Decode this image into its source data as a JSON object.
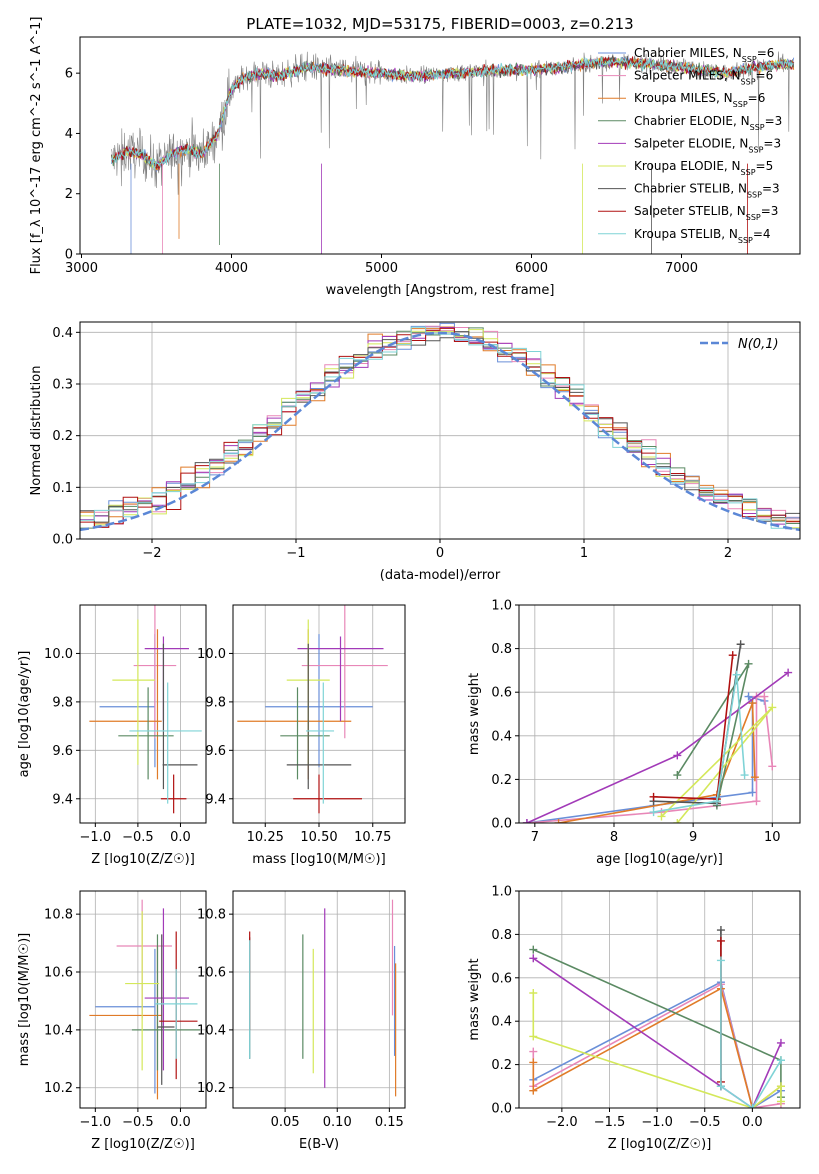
{
  "figure_title": "PLATE=1032, MJD=53175, FIBERID=0003, z=0.213",
  "models": [
    {
      "name": "Chabrier MILES",
      "nssp": 6,
      "color": "#6a8fd8"
    },
    {
      "name": "Salpeter MILES",
      "nssp": 6,
      "color": "#e887b8"
    },
    {
      "name": "Kroupa MILES",
      "nssp": 6,
      "color": "#e07b28"
    },
    {
      "name": "Chabrier ELODIE",
      "nssp": 3,
      "color": "#5b8a63"
    },
    {
      "name": "Salpeter ELODIE",
      "nssp": 3,
      "color": "#a23ab8"
    },
    {
      "name": "Kroupa ELODIE",
      "nssp": 5,
      "color": "#d4e85a"
    },
    {
      "name": "Chabrier STELIB",
      "nssp": 3,
      "color": "#555555"
    },
    {
      "name": "Salpeter STELIB",
      "nssp": 3,
      "color": "#b01010"
    },
    {
      "name": "Kroupa STELIB",
      "nssp": 4,
      "color": "#7fd3d6"
    }
  ],
  "legend_prefix_nssp": "N",
  "legend_sub_nssp": "SSP",
  "chart_data": [
    {
      "id": "spectrum",
      "type": "line",
      "xlabel": "wavelength [Angstrom, rest frame]",
      "ylabel": "Flux [f_λ 10^-17 erg cm^-2 s^-1 A^-1]",
      "xlim": [
        2990,
        7790
      ],
      "ylim": [
        0,
        7.2
      ],
      "xticks": [
        3000,
        4000,
        5000,
        6000,
        7000
      ],
      "yticks": [
        0,
        2,
        4,
        6
      ],
      "grid": false,
      "legend": "right",
      "data_color": "#808080",
      "data_range": [
        3200,
        7750
      ],
      "continuum": [
        [
          3200,
          3.1
        ],
        [
          3300,
          3.4
        ],
        [
          3400,
          3.3
        ],
        [
          3500,
          2.9
        ],
        [
          3600,
          3.3
        ],
        [
          3700,
          3.5
        ],
        [
          3800,
          3.3
        ],
        [
          3900,
          3.9
        ],
        [
          4000,
          5.5
        ],
        [
          4100,
          5.9
        ],
        [
          4200,
          6.0
        ],
        [
          4300,
          5.9
        ],
        [
          4500,
          6.2
        ],
        [
          4700,
          6.1
        ],
        [
          5000,
          6.0
        ],
        [
          5200,
          5.9
        ],
        [
          5500,
          6.0
        ],
        [
          5800,
          6.1
        ],
        [
          6000,
          6.1
        ],
        [
          6200,
          6.2
        ],
        [
          6500,
          6.4
        ],
        [
          6800,
          6.3
        ],
        [
          7000,
          6.2
        ],
        [
          7300,
          6.0
        ],
        [
          7500,
          6.2
        ],
        [
          7700,
          6.3
        ]
      ]
    },
    {
      "id": "residuals",
      "type": "histogram",
      "xlabel": "(data-model)/error",
      "ylabel": "Normed distribution",
      "xlim": [
        -2.5,
        2.5
      ],
      "ylim": [
        0,
        0.42
      ],
      "xticks": [
        -2,
        -1,
        0,
        1,
        2
      ],
      "yticks": [
        0.0,
        0.1,
        0.2,
        0.3,
        0.4
      ],
      "grid": true,
      "legend": "top-right",
      "reference_label": "N(0,1)",
      "reference_color": "#5b87d6",
      "bin_width": 0.1
    },
    {
      "id": "age-vs-Z",
      "type": "scatter",
      "xlabel": "Z [log10(Z/Z☉)]",
      "ylabel": "age [log10(age/yr)]",
      "xlim": [
        -1.18,
        0.3
      ],
      "ylim": [
        9.3,
        10.2
      ],
      "xticks": [
        -1.0,
        -0.5,
        0.0
      ],
      "yticks": [
        9.4,
        9.6,
        9.8,
        10.0
      ],
      "grid": true,
      "points": [
        {
          "m": 0,
          "x": -0.3,
          "xerr": [
            0.65,
            0.0
          ],
          "y": 9.78,
          "yerr": [
            0.25,
            0.3
          ]
        },
        {
          "m": 1,
          "x": -0.3,
          "xerr": [
            0.25,
            0.25
          ],
          "y": 9.95,
          "yerr": [
            0.3,
            0.25
          ]
        },
        {
          "m": 2,
          "x": -0.27,
          "xerr": [
            0.8,
            0.05
          ],
          "y": 9.72,
          "yerr": [
            0.24,
            0.38
          ]
        },
        {
          "m": 3,
          "x": -0.38,
          "xerr": [
            0.35,
            0.3
          ],
          "y": 9.66,
          "yerr": [
            0.18,
            0.2
          ]
        },
        {
          "m": 4,
          "x": -0.2,
          "xerr": [
            0.22,
            0.3
          ],
          "y": 10.02,
          "yerr": [
            0.3,
            0.05
          ]
        },
        {
          "m": 5,
          "x": -0.5,
          "xerr": [
            0.3,
            0.2
          ],
          "y": 9.89,
          "yerr": [
            0.35,
            0.25
          ]
        },
        {
          "m": 6,
          "x": -0.2,
          "xerr": [
            0.01,
            0.4
          ],
          "y": 9.54,
          "yerr": [
            0.1,
            0.5
          ]
        },
        {
          "m": 7,
          "x": -0.08,
          "xerr": [
            0.15,
            0.15
          ],
          "y": 9.4,
          "yerr": [
            0.06,
            0.1
          ]
        },
        {
          "m": 8,
          "x": -0.15,
          "xerr": [
            0.45,
            0.4
          ],
          "y": 9.68,
          "yerr": [
            0.3,
            0.2
          ]
        }
      ]
    },
    {
      "id": "age-vs-mass",
      "type": "scatter",
      "xlabel": "mass [log10(M/M☉)]",
      "ylabel": "",
      "xlim": [
        10.1,
        10.9
      ],
      "ylim": [
        9.3,
        10.2
      ],
      "xticks": [
        10.25,
        10.5,
        10.75
      ],
      "yticks": [
        9.4,
        9.6,
        9.8,
        10.0
      ],
      "grid": true,
      "points": [
        {
          "m": 0,
          "x": 10.5,
          "xerr": [
            0.25,
            0.25
          ],
          "y": 9.78,
          "yerr": [
            0.25,
            0.3
          ]
        },
        {
          "m": 1,
          "x": 10.62,
          "xerr": [
            0.2,
            0.2
          ],
          "y": 9.95,
          "yerr": [
            0.3,
            0.25
          ]
        },
        {
          "m": 2,
          "x": 10.45,
          "xerr": [
            0.33,
            0.2
          ],
          "y": 9.72,
          "yerr": [
            0.24,
            0.38
          ]
        },
        {
          "m": 3,
          "x": 10.4,
          "xerr": [
            0.08,
            0.15
          ],
          "y": 9.66,
          "yerr": [
            0.18,
            0.2
          ]
        },
        {
          "m": 4,
          "x": 10.6,
          "xerr": [
            0.2,
            0.2
          ],
          "y": 10.02,
          "yerr": [
            0.3,
            0.05
          ]
        },
        {
          "m": 5,
          "x": 10.45,
          "xerr": [
            0.1,
            0.1
          ],
          "y": 9.89,
          "yerr": [
            0.35,
            0.25
          ]
        },
        {
          "m": 6,
          "x": 10.45,
          "xerr": [
            0.1,
            0.2
          ],
          "y": 9.54,
          "yerr": [
            0.1,
            0.5
          ]
        },
        {
          "m": 7,
          "x": 10.5,
          "xerr": [
            0.12,
            0.2
          ],
          "y": 9.4,
          "yerr": [
            0.06,
            0.1
          ]
        },
        {
          "m": 8,
          "x": 10.52,
          "xerr": [
            0.08,
            0.05
          ],
          "y": 9.68,
          "yerr": [
            0.3,
            0.2
          ]
        }
      ]
    },
    {
      "id": "weight-vs-age",
      "type": "line",
      "xlabel": "age [log10(age/yr)]",
      "ylabel": "mass weight",
      "xlim": [
        6.8,
        10.35
      ],
      "ylim": [
        0,
        1.0
      ],
      "xticks": [
        7,
        8,
        9,
        10
      ],
      "yticks": [
        0.0,
        0.2,
        0.4,
        0.6,
        0.8,
        1.0
      ],
      "grid": true,
      "series": [
        {
          "m": 0,
          "points": [
            [
              6.9,
              0.0
            ],
            [
              8.5,
              0.08
            ],
            [
              9.75,
              0.14
            ],
            [
              9.75,
              0.55
            ],
            [
              9.7,
              0.58
            ],
            [
              9.9,
              0.56
            ]
          ]
        },
        {
          "m": 1,
          "points": [
            [
              6.9,
              0.0
            ],
            [
              8.6,
              0.05
            ],
            [
              9.8,
              0.1
            ],
            [
              9.8,
              0.58
            ],
            [
              9.9,
              0.58
            ],
            [
              10.0,
              0.26
            ]
          ]
        },
        {
          "m": 2,
          "points": [
            [
              7.3,
              0.0
            ],
            [
              9.3,
              0.13
            ],
            [
              9.75,
              0.55
            ],
            [
              9.78,
              0.21
            ]
          ]
        },
        {
          "m": 3,
          "points": [
            [
              8.8,
              0.22
            ],
            [
              9.7,
              0.73
            ],
            [
              9.3,
              0.08
            ]
          ]
        },
        {
          "m": 4,
          "points": [
            [
              6.9,
              0.0
            ],
            [
              8.8,
              0.31
            ],
            [
              10.2,
              0.69
            ]
          ]
        },
        {
          "m": 5,
          "points": [
            [
              8.8,
              0.0
            ],
            [
              10.0,
              0.53
            ],
            [
              8.6,
              0.03
            ]
          ]
        },
        {
          "m": 6,
          "points": [
            [
              8.5,
              0.1
            ],
            [
              9.3,
              0.09
            ],
            [
              9.6,
              0.82
            ]
          ]
        },
        {
          "m": 7,
          "points": [
            [
              8.5,
              0.12
            ],
            [
              9.3,
              0.11
            ],
            [
              9.5,
              0.77
            ]
          ]
        },
        {
          "m": 8,
          "points": [
            [
              8.5,
              0.05
            ],
            [
              9.3,
              0.1
            ],
            [
              9.55,
              0.68
            ],
            [
              9.65,
              0.22
            ]
          ]
        }
      ]
    },
    {
      "id": "mass-vs-Z",
      "type": "scatter",
      "xlabel": "Z [log10(Z/Z☉)]",
      "ylabel": "mass [log10(M/M☉)]",
      "xlim": [
        -1.18,
        0.3
      ],
      "ylim": [
        10.13,
        10.88
      ],
      "xticks": [
        -1.0,
        -0.5,
        0.0
      ],
      "yticks": [
        10.2,
        10.4,
        10.6,
        10.8
      ],
      "grid": true,
      "points": [
        {
          "m": 0,
          "x": -0.3,
          "xerr": [
            0.7,
            0.0
          ],
          "y": 10.48,
          "yerr": [
            0.3,
            0.2
          ]
        },
        {
          "m": 1,
          "x": -0.45,
          "xerr": [
            0.3,
            0.35
          ],
          "y": 10.69,
          "yerr": [
            0.25,
            0.16
          ]
        },
        {
          "m": 2,
          "x": -0.27,
          "xerr": [
            0.8,
            0.05
          ],
          "y": 10.45,
          "yerr": [
            0.29,
            0.24
          ]
        },
        {
          "m": 3,
          "x": -0.27,
          "xerr": [
            0.3,
            0.5
          ],
          "y": 10.4,
          "yerr": [
            0.14,
            0.33
          ]
        },
        {
          "m": 4,
          "x": -0.2,
          "xerr": [
            0.22,
            0.3
          ],
          "y": 10.51,
          "yerr": [
            0.25,
            0.31
          ]
        },
        {
          "m": 5,
          "x": -0.45,
          "xerr": [
            0.2,
            0.2
          ],
          "y": 10.56,
          "yerr": [
            0.3,
            0.25
          ]
        },
        {
          "m": 6,
          "x": -0.22,
          "xerr": [
            0.05,
            0.15
          ],
          "y": 10.41,
          "yerr": [
            0.2,
            0.32
          ]
        },
        {
          "m": 7,
          "x": -0.05,
          "xerr": [
            0.2,
            0.25
          ],
          "y": 10.43,
          "yerr": [
            0.2,
            0.31
          ]
        },
        {
          "m": 8,
          "x": -0.05,
          "xerr": [
            0.25,
            0.25
          ],
          "y": 10.49,
          "yerr": [
            0.19,
            0.12
          ]
        }
      ]
    },
    {
      "id": "mass-vs-ebv",
      "type": "scatter",
      "xlabel": "E(B-V)",
      "ylabel": "",
      "xlim": [
        0.0,
        0.165
      ],
      "ylim": [
        10.13,
        10.88
      ],
      "xticks": [
        0.05,
        0.1,
        0.15
      ],
      "yticks": [
        10.2,
        10.4,
        10.6,
        10.8
      ],
      "grid": true,
      "points": [
        {
          "m": 0,
          "x": 0.155,
          "xerr": [
            0,
            0
          ],
          "y": 10.48,
          "yerr": [
            0.17,
            0.21
          ]
        },
        {
          "m": 1,
          "x": 0.153,
          "xerr": [
            0,
            0
          ],
          "y": 10.55,
          "yerr": [
            0.1,
            0.3
          ]
        },
        {
          "m": 2,
          "x": 0.156,
          "xerr": [
            0,
            0
          ],
          "y": 10.4,
          "yerr": [
            0.23,
            0.23
          ]
        },
        {
          "m": 3,
          "x": 0.067,
          "xerr": [
            0,
            0
          ],
          "y": 10.5,
          "yerr": [
            0.2,
            0.23
          ]
        },
        {
          "m": 4,
          "x": 0.088,
          "xerr": [
            0,
            0
          ],
          "y": 10.5,
          "yerr": [
            0.3,
            0.32
          ]
        },
        {
          "m": 5,
          "x": 0.077,
          "xerr": [
            0,
            0
          ],
          "y": 10.45,
          "yerr": [
            0.2,
            0.23
          ]
        },
        {
          "m": 6,
          "x": 0.016,
          "xerr": [
            0,
            0
          ],
          "y": 10.5,
          "yerr": [
            0.2,
            0.22
          ]
        },
        {
          "m": 7,
          "x": 0.016,
          "xerr": [
            0,
            0
          ],
          "y": 10.6,
          "yerr": [
            0.2,
            0.14
          ]
        },
        {
          "m": 8,
          "x": 0.016,
          "xerr": [
            0,
            0
          ],
          "y": 10.5,
          "yerr": [
            0.2,
            0.21
          ]
        }
      ]
    },
    {
      "id": "weight-vs-Z",
      "type": "line",
      "xlabel": "Z [log10(Z/Z☉)]",
      "ylabel": "mass weight",
      "xlim": [
        -2.45,
        0.5
      ],
      "ylim": [
        0,
        1.0
      ],
      "xticks": [
        -2.0,
        -1.5,
        -1.0,
        -0.5,
        0.0
      ],
      "yticks": [
        0.0,
        0.2,
        0.4,
        0.6,
        0.8,
        1.0
      ],
      "grid": true,
      "series": [
        {
          "m": 0,
          "points": [
            [
              -2.3,
              0.13
            ],
            [
              -0.33,
              0.58
            ],
            [
              0.0,
              0.0
            ],
            [
              0.3,
              0.08
            ]
          ]
        },
        {
          "m": 1,
          "points": [
            [
              -2.3,
              0.26
            ],
            [
              -2.3,
              0.1
            ],
            [
              -0.33,
              0.57
            ],
            [
              0.0,
              0.0
            ],
            [
              0.3,
              0.02
            ]
          ]
        },
        {
          "m": 2,
          "points": [
            [
              -2.3,
              0.21
            ],
            [
              -2.3,
              0.08
            ],
            [
              -0.33,
              0.55
            ],
            [
              0.0,
              0.0
            ],
            [
              0.3,
              0.1
            ]
          ]
        },
        {
          "m": 3,
          "points": [
            [
              -2.3,
              0.73
            ],
            [
              0.3,
              0.22
            ],
            [
              0.3,
              0.05
            ]
          ]
        },
        {
          "m": 4,
          "points": [
            [
              -2.3,
              0.69
            ],
            [
              -0.33,
              0.1
            ],
            [
              0.0,
              0.0
            ],
            [
              0.3,
              0.3
            ]
          ]
        },
        {
          "m": 5,
          "points": [
            [
              -2.3,
              0.53
            ],
            [
              -2.3,
              0.33
            ],
            [
              0.0,
              0.0
            ],
            [
              0.3,
              0.1
            ],
            [
              0.3,
              0.03
            ]
          ]
        },
        {
          "m": 6,
          "points": [
            [
              -0.33,
              0.82
            ],
            [
              -0.33,
              0.1
            ]
          ]
        },
        {
          "m": 7,
          "points": [
            [
              -0.33,
              0.77
            ],
            [
              -0.33,
              0.12
            ]
          ]
        },
        {
          "m": 8,
          "points": [
            [
              -0.33,
              0.68
            ],
            [
              -0.33,
              0.1
            ],
            [
              0.0,
              0.0
            ],
            [
              0.3,
              0.22
            ]
          ]
        }
      ]
    }
  ]
}
